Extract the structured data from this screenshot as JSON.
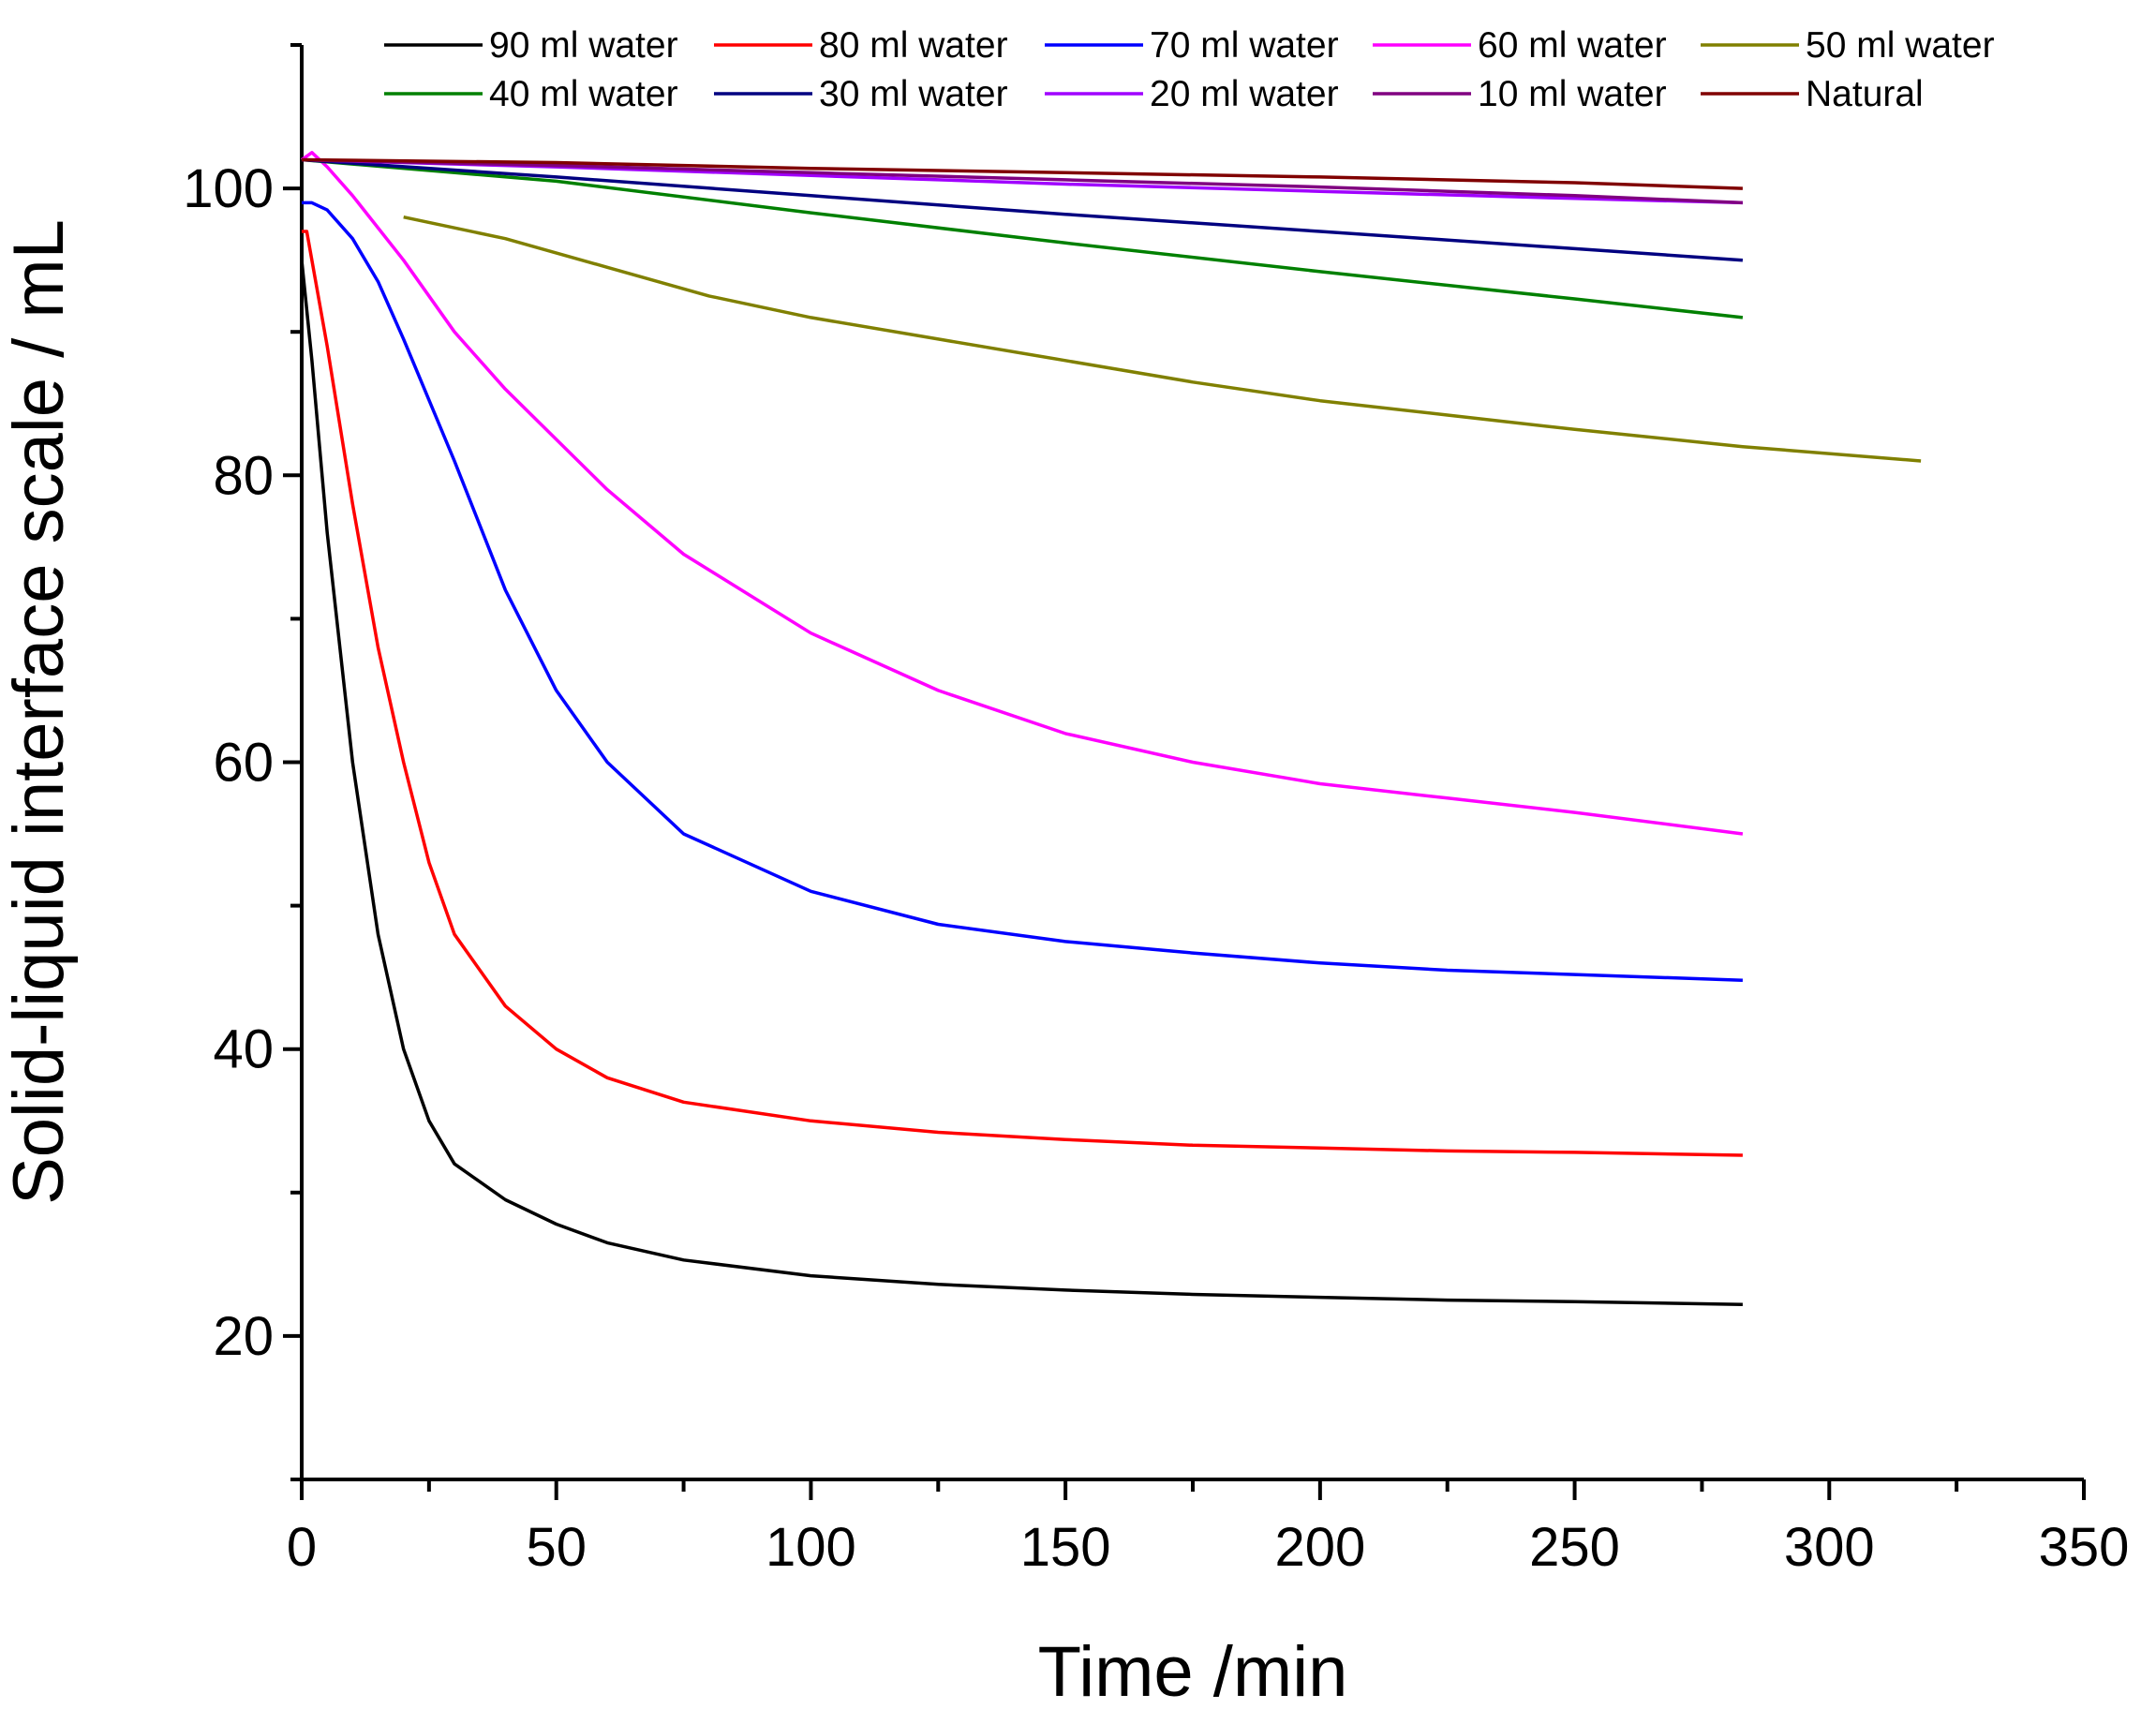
{
  "chart_data": {
    "type": "line",
    "title": "",
    "xlabel": "Time /min",
    "ylabel": "Solid-liquid interface scale / mL",
    "xlim": [
      0,
      350
    ],
    "ylim": [
      10,
      110
    ],
    "xticks": [
      0,
      50,
      100,
      150,
      200,
      250,
      300,
      350
    ],
    "yticks": [
      20,
      40,
      60,
      80,
      100
    ],
    "grid": false,
    "legend_position": "top",
    "series": [
      {
        "name": " 90 ml water",
        "color": "#000000",
        "x": [
          0,
          2,
          5,
          10,
          15,
          20,
          25,
          30,
          40,
          50,
          60,
          75,
          100,
          125,
          150,
          175,
          200,
          225,
          250,
          283
        ],
        "y": [
          95,
          88,
          76,
          60,
          48,
          40,
          35,
          32,
          29.5,
          27.8,
          26.5,
          25.3,
          24.2,
          23.6,
          23.2,
          22.9,
          22.7,
          22.5,
          22.4,
          22.2
        ]
      },
      {
        "name": "80 ml water",
        "color": "#FF0000",
        "x": [
          0,
          1,
          5,
          10,
          15,
          20,
          25,
          30,
          40,
          50,
          60,
          75,
          100,
          125,
          150,
          175,
          200,
          225,
          250,
          283
        ],
        "y": [
          97,
          97,
          89,
          78,
          68,
          60,
          53,
          48,
          43,
          40,
          38,
          36.3,
          35,
          34.2,
          33.7,
          33.3,
          33.1,
          32.9,
          32.8,
          32.6
        ]
      },
      {
        "name": "70 ml water",
        "color": "#0000FF",
        "x": [
          0,
          2,
          5,
          10,
          15,
          20,
          30,
          40,
          50,
          60,
          75,
          100,
          125,
          150,
          175,
          200,
          225,
          250,
          283
        ],
        "y": [
          99,
          99,
          98.5,
          96.5,
          93.5,
          89.5,
          81,
          72,
          65,
          60,
          55,
          51,
          48.7,
          47.5,
          46.7,
          46,
          45.5,
          45.2,
          44.8
        ]
      },
      {
        "name": "60 ml water",
        "color": "#FF00FF",
        "x": [
          0,
          2,
          5,
          10,
          20,
          30,
          40,
          50,
          60,
          75,
          100,
          125,
          150,
          175,
          200,
          225,
          250,
          283
        ],
        "y": [
          102,
          102.5,
          101.5,
          99.5,
          95,
          90,
          86,
          82.5,
          79,
          74.5,
          69,
          65,
          62,
          60,
          58.5,
          57.5,
          56.5,
          55
        ]
      },
      {
        "name": " 50 ml water",
        "color": "#808000",
        "x": [
          20,
          40,
          60,
          80,
          100,
          125,
          150,
          175,
          200,
          225,
          250,
          283,
          318
        ],
        "y": [
          98,
          96.5,
          94.5,
          92.5,
          91,
          89.5,
          88,
          86.5,
          85.2,
          84.2,
          83.2,
          82,
          81
        ]
      },
      {
        "name": "40 ml water",
        "color": "#008000",
        "x": [
          0,
          50,
          100,
          150,
          200,
          250,
          283
        ],
        "y": [
          102,
          100.5,
          98.3,
          96.2,
          94.2,
          92.3,
          91
        ]
      },
      {
        "name": "30 ml water",
        "color": "#000080",
        "x": [
          0,
          50,
          100,
          150,
          200,
          250,
          283
        ],
        "y": [
          102,
          100.8,
          99.5,
          98.2,
          97,
          95.8,
          95
        ]
      },
      {
        "name": "20 ml water",
        "color": "#A000FF",
        "x": [
          0,
          50,
          100,
          150,
          200,
          250,
          283
        ],
        "y": [
          102,
          101.5,
          100.9,
          100.3,
          99.8,
          99.3,
          99
        ]
      },
      {
        "name": "10 ml water",
        "color": "#800080",
        "x": [
          0,
          50,
          100,
          150,
          200,
          250,
          283
        ],
        "y": [
          102,
          101.6,
          101.1,
          100.6,
          100.1,
          99.5,
          99
        ]
      },
      {
        "name": "Natural",
        "color": "#800000",
        "x": [
          0,
          50,
          100,
          150,
          200,
          250,
          283
        ],
        "y": [
          102,
          101.8,
          101.4,
          101.1,
          100.8,
          100.4,
          100
        ]
      }
    ]
  }
}
